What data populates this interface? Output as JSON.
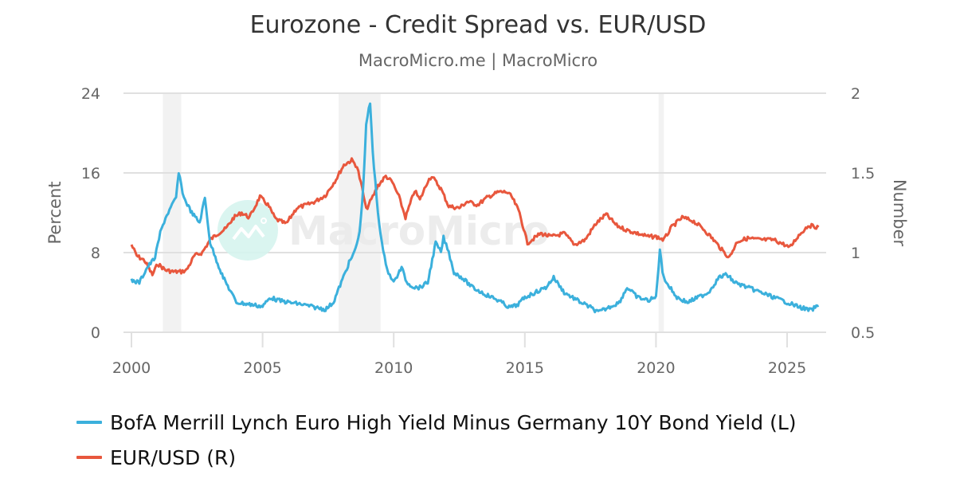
{
  "header": {
    "title": "Eurozone - Credit Spread vs. EUR/USD",
    "subtitle": "MacroMicro.me | MacroMicro"
  },
  "watermark": {
    "text": "MacroMicro",
    "icon": "macromicro-logo-icon"
  },
  "axes": {
    "left": {
      "title": "Percent",
      "ticks": [
        "0",
        "8",
        "16",
        "24"
      ]
    },
    "right": {
      "title": "Number",
      "ticks": [
        "0.5",
        "1",
        "1.5",
        "2"
      ]
    },
    "x": {
      "ticks": [
        "2000",
        "2005",
        "2010",
        "2015",
        "2020",
        "2025"
      ]
    }
  },
  "legend": [
    {
      "label": "BofA Merrill Lynch Euro High Yield Minus Germany 10Y Bond Yield (L)",
      "color": "#3bb0dc"
    },
    {
      "label": "EUR/USD (R)",
      "color": "#e8573d"
    }
  ],
  "chart_data": {
    "type": "line",
    "title": "Eurozone - Credit Spread vs. EUR/USD",
    "subtitle": "MacroMicro.me | MacroMicro",
    "xlabel": "",
    "ylabel_left": "Percent",
    "ylabel_right": "Number",
    "xlim": [
      2000,
      2026.3
    ],
    "ylim_left": [
      0,
      24
    ],
    "ylim_right": [
      0.5,
      2
    ],
    "grid": true,
    "legend_position": "bottom-left",
    "recession_shading": [
      [
        2001.2,
        2001.9
      ],
      [
        2007.9,
        2009.5
      ],
      [
        2020.1,
        2020.3
      ]
    ],
    "series": [
      {
        "name": "BofA Merrill Lynch Euro High Yield Minus Germany 10Y Bond Yield (L)",
        "axis": "left",
        "color": "#3bb0dc",
        "x": [
          2000.0,
          2000.3,
          2000.6,
          2000.9,
          2001.1,
          2001.3,
          2001.5,
          2001.7,
          2001.8,
          2002.0,
          2002.3,
          2002.6,
          2002.8,
          2003.0,
          2003.2,
          2003.5,
          2003.8,
          2004.0,
          2004.5,
          2005.0,
          2005.3,
          2005.6,
          2006.0,
          2006.5,
          2007.0,
          2007.4,
          2007.7,
          2008.0,
          2008.3,
          2008.5,
          2008.7,
          2008.85,
          2008.95,
          2009.1,
          2009.2,
          2009.4,
          2009.6,
          2009.8,
          2010.0,
          2010.3,
          2010.5,
          2010.8,
          2011.0,
          2011.3,
          2011.6,
          2011.8,
          2011.9,
          2012.1,
          2012.3,
          2012.6,
          2013.0,
          2013.5,
          2014.0,
          2014.4,
          2014.7,
          2015.0,
          2015.4,
          2015.8,
          2016.1,
          2016.5,
          2017.0,
          2017.5,
          2017.8,
          2018.2,
          2018.6,
          2018.9,
          2019.3,
          2019.7,
          2020.0,
          2020.15,
          2020.25,
          2020.4,
          2020.8,
          2021.2,
          2021.6,
          2022.0,
          2022.4,
          2022.7,
          2023.0,
          2023.5,
          2024.0,
          2024.5,
          2025.0,
          2025.5,
          2025.9,
          2026.2
        ],
        "values": [
          5.2,
          5.0,
          6.5,
          7.5,
          10.0,
          11.5,
          12.5,
          13.5,
          16.0,
          13.5,
          12.0,
          11.0,
          13.5,
          9.0,
          7.5,
          5.5,
          4.0,
          3.0,
          2.8,
          2.6,
          3.5,
          3.2,
          3.0,
          2.8,
          2.5,
          2.3,
          3.0,
          5.0,
          7.0,
          8.0,
          10.0,
          15.0,
          21.0,
          23.0,
          18.0,
          12.0,
          8.0,
          6.0,
          5.0,
          6.5,
          5.0,
          4.5,
          4.5,
          5.0,
          9.0,
          8.0,
          9.5,
          8.0,
          6.0,
          5.5,
          4.5,
          3.8,
          3.2,
          2.5,
          2.7,
          3.5,
          4.0,
          4.5,
          5.5,
          4.0,
          3.2,
          2.5,
          2.0,
          2.5,
          3.0,
          4.5,
          3.5,
          3.2,
          3.5,
          8.3,
          6.0,
          5.0,
          3.5,
          3.0,
          3.5,
          4.0,
          5.5,
          5.8,
          5.0,
          4.5,
          4.0,
          3.5,
          3.0,
          2.5,
          2.2,
          2.7
        ]
      },
      {
        "name": "EUR/USD (R)",
        "axis": "right",
        "color": "#e8573d",
        "x": [
          2000.0,
          2000.2,
          2000.5,
          2000.8,
          2001.0,
          2001.3,
          2001.6,
          2001.9,
          2002.1,
          2002.4,
          2002.7,
          2003.0,
          2003.3,
          2003.6,
          2003.9,
          2004.2,
          2004.5,
          2004.9,
          2005.2,
          2005.5,
          2005.9,
          2006.3,
          2006.7,
          2007.0,
          2007.4,
          2007.8,
          2008.1,
          2008.4,
          2008.6,
          2008.8,
          2008.95,
          2009.2,
          2009.4,
          2009.7,
          2009.95,
          2010.2,
          2010.45,
          2010.8,
          2011.0,
          2011.3,
          2011.45,
          2011.8,
          2012.1,
          2012.5,
          2012.8,
          2013.2,
          2013.6,
          2014.0,
          2014.3,
          2014.5,
          2014.8,
          2015.0,
          2015.1,
          2015.6,
          2016.0,
          2016.5,
          2016.9,
          2017.3,
          2017.7,
          2018.1,
          2018.5,
          2018.9,
          2019.3,
          2019.7,
          2020.0,
          2020.3,
          2020.6,
          2021.0,
          2021.4,
          2021.8,
          2022.2,
          2022.6,
          2022.8,
          2023.1,
          2023.5,
          2024.0,
          2024.5,
          2024.9,
          2025.1,
          2025.4,
          2025.8,
          2026.2
        ],
        "values": [
          1.05,
          0.98,
          0.95,
          0.86,
          0.93,
          0.89,
          0.88,
          0.88,
          0.89,
          0.98,
          1.0,
          1.08,
          1.12,
          1.15,
          1.22,
          1.25,
          1.22,
          1.35,
          1.3,
          1.21,
          1.18,
          1.28,
          1.3,
          1.32,
          1.36,
          1.46,
          1.55,
          1.58,
          1.54,
          1.4,
          1.27,
          1.35,
          1.42,
          1.48,
          1.44,
          1.35,
          1.22,
          1.39,
          1.33,
          1.45,
          1.48,
          1.4,
          1.29,
          1.28,
          1.32,
          1.3,
          1.35,
          1.38,
          1.38,
          1.35,
          1.25,
          1.12,
          1.06,
          1.12,
          1.1,
          1.12,
          1.05,
          1.08,
          1.18,
          1.24,
          1.17,
          1.14,
          1.12,
          1.1,
          1.1,
          1.08,
          1.16,
          1.22,
          1.2,
          1.15,
          1.08,
          1.0,
          0.97,
          1.07,
          1.09,
          1.08,
          1.08,
          1.05,
          1.03,
          1.1,
          1.17,
          1.16
        ]
      }
    ]
  }
}
